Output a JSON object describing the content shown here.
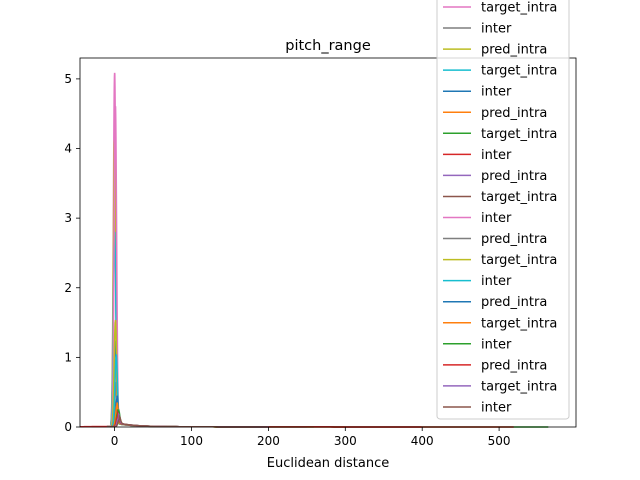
{
  "chart_data": {
    "type": "line",
    "title": "pitch_range",
    "xlabel": "Euclidean distance",
    "ylabel": "",
    "xlim": [
      -45,
      600
    ],
    "ylim": [
      0,
      5.3
    ],
    "xticks": [
      0,
      100,
      200,
      300,
      400,
      500
    ],
    "yticks": [
      0,
      1,
      2,
      3,
      4,
      5
    ],
    "grid": false,
    "legend_position": "top-right (extends above the axes)",
    "series": [
      {
        "name": "target_intra",
        "color": "#e377c2",
        "peak_x": 0,
        "peak_y": 5.08,
        "x_min": -5,
        "x_max": 60
      },
      {
        "name": "inter",
        "color": "#7f7f7f",
        "peak_x": 0,
        "peak_y": 3.2,
        "x_min": -5,
        "x_max": 80
      },
      {
        "name": "pred_intra",
        "color": "#bcbd22",
        "peak_x": 0,
        "peak_y": 4.1,
        "x_min": -5,
        "x_max": 200
      },
      {
        "name": "target_intra",
        "color": "#17becf",
        "peak_x": 0,
        "peak_y": 2.78,
        "x_min": -5,
        "x_max": 100
      },
      {
        "name": "inter",
        "color": "#1f77b4",
        "peak_x": 1,
        "peak_y": 1.2,
        "x_min": -5,
        "x_max": 150
      },
      {
        "name": "pred_intra",
        "color": "#ff7f0e",
        "peak_x": 1,
        "peak_y": 0.9,
        "x_min": -10,
        "x_max": 300
      },
      {
        "name": "target_intra",
        "color": "#2ca02c",
        "peak_x": 5,
        "peak_y": 0.2,
        "x_min": -5,
        "x_max": 565
      },
      {
        "name": "inter",
        "color": "#d62728",
        "peak_x": 2,
        "peak_y": 0.25,
        "x_min": -45,
        "x_max": 520
      },
      {
        "name": "pred_intra",
        "color": "#9467bd",
        "peak_x": 5,
        "peak_y": 0.15,
        "x_min": -10,
        "x_max": 250
      },
      {
        "name": "target_intra",
        "color": "#8c564b",
        "peak_x": 3,
        "peak_y": 0.18,
        "x_min": -10,
        "x_max": 200
      },
      {
        "name": "inter",
        "color": "#e377c2",
        "peak_x": 1,
        "peak_y": 4.6,
        "x_min": -5,
        "x_max": 60
      },
      {
        "name": "pred_intra",
        "color": "#7f7f7f",
        "peak_x": 2,
        "peak_y": 0.6,
        "x_min": -5,
        "x_max": 120
      },
      {
        "name": "target_intra",
        "color": "#bcbd22",
        "peak_x": 1,
        "peak_y": 1.5,
        "x_min": -5,
        "x_max": 150
      },
      {
        "name": "inter",
        "color": "#17becf",
        "peak_x": 2,
        "peak_y": 1.0,
        "x_min": -5,
        "x_max": 100
      },
      {
        "name": "pred_intra",
        "color": "#1f77b4",
        "peak_x": 3,
        "peak_y": 0.4,
        "x_min": -10,
        "x_max": 200
      },
      {
        "name": "target_intra",
        "color": "#ff7f0e",
        "peak_x": 3,
        "peak_y": 0.3,
        "x_min": -10,
        "x_max": 180
      },
      {
        "name": "inter",
        "color": "#2ca02c",
        "peak_x": 4,
        "peak_y": 0.2,
        "x_min": -10,
        "x_max": 260
      },
      {
        "name": "pred_intra",
        "color": "#d62728",
        "peak_x": 4,
        "peak_y": 0.15,
        "x_min": -30,
        "x_max": 400
      },
      {
        "name": "target_intra",
        "color": "#9467bd",
        "peak_x": 5,
        "peak_y": 0.12,
        "x_min": -10,
        "x_max": 200
      },
      {
        "name": "inter",
        "color": "#8c564b",
        "peak_x": 6,
        "peak_y": 0.1,
        "x_min": -10,
        "x_max": 200
      }
    ]
  }
}
